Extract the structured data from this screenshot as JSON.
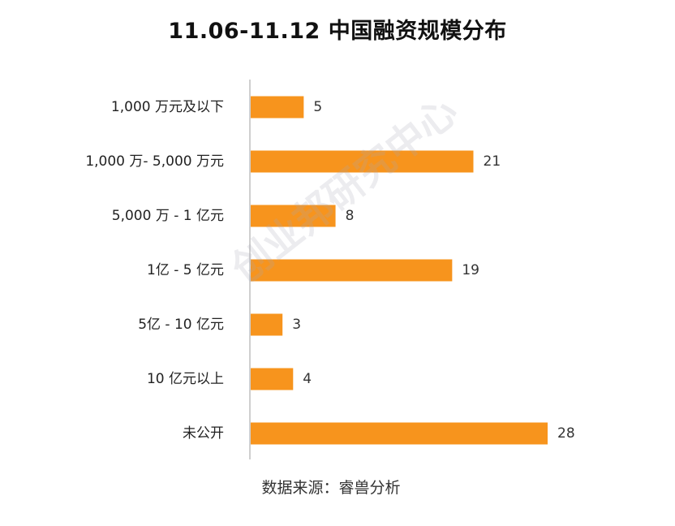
{
  "source_note": "数据来源：睿兽分析",
  "watermark": "创业邦研究中心",
  "colors": {
    "bar": "#f7941d",
    "axis": "#bfbfbf",
    "label": "#222222",
    "value": "#333333"
  },
  "chart_data": {
    "type": "bar",
    "orientation": "horizontal",
    "title": "11.06-11.12 中国融资规模分布",
    "categories": [
      "1,000 万元及以下",
      "1,000 万- 5,000 万元",
      "5,000 万 - 1 亿元",
      "1亿 - 5 亿元",
      "5亿 - 10 亿元",
      "10 亿元以上",
      "未公开"
    ],
    "values": [
      5,
      21,
      8,
      19,
      3,
      4,
      28
    ],
    "xlim": [
      0,
      28
    ],
    "data_labels": true,
    "grid": false,
    "legend": "none"
  }
}
